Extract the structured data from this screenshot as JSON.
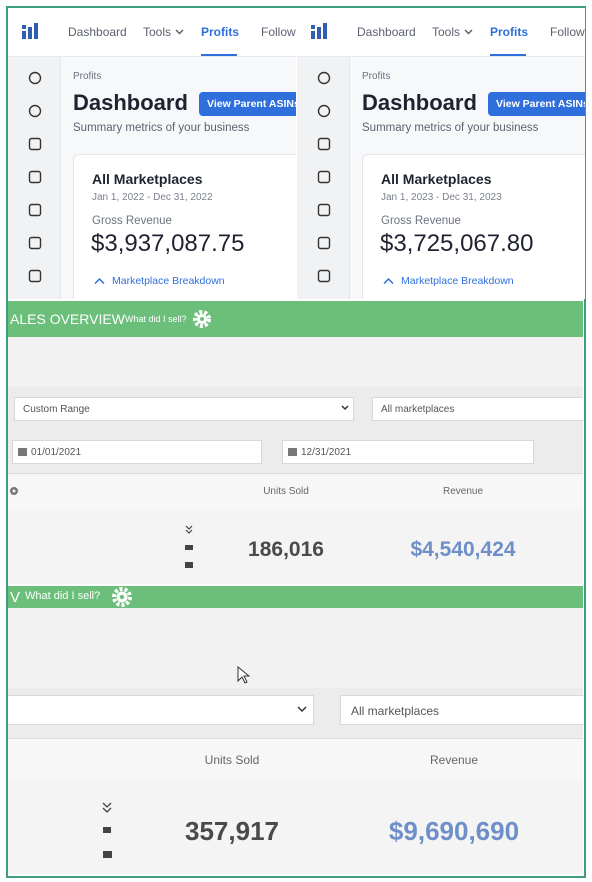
{
  "dashboards": [
    {
      "nav": [
        "Dashboard",
        "Tools",
        "Profits",
        "Follow-"
      ],
      "breadcrumb": "Profits",
      "heading": "Dashboard",
      "button": "View Parent ASINs",
      "subtitle": "Summary metrics of your business",
      "card_title": "All Marketplaces",
      "date_range": "Jan 1, 2022 - Dec 31, 2022",
      "metric_label": "Gross Revenue",
      "metric_value": "$3,937,087.75",
      "link": "Marketplace Breakdown"
    },
    {
      "nav": [
        "Dashboard",
        "Tools",
        "Profits",
        "Follow-"
      ],
      "breadcrumb": "Profits",
      "heading": "Dashboard",
      "button": "View Parent ASINs",
      "subtitle": "Summary metrics of your business",
      "card_title": "All Marketplaces",
      "date_range": "Jan 1, 2023 - Dec 31, 2023",
      "metric_label": "Gross Revenue",
      "metric_value": "$3,725,067.80",
      "link": "Marketplace Breakdown"
    }
  ],
  "sales_2021": {
    "title": "ALES OVERVIEW",
    "link": "What did I sell?",
    "range": "Custom Range",
    "marketplace": "All marketplaces",
    "start_date": "01/01/2021",
    "end_date": "12/31/2021",
    "columns": [
      "Units Sold",
      "Revenue"
    ],
    "units_sold": "186,016",
    "revenue": "$4,540,424"
  },
  "sales_total": {
    "title": "V",
    "link": "What did I sell?",
    "marketplace": "All marketplaces",
    "columns": [
      "Units Sold",
      "Revenue"
    ],
    "units_sold": "357,917",
    "revenue": "$9,690,690"
  }
}
